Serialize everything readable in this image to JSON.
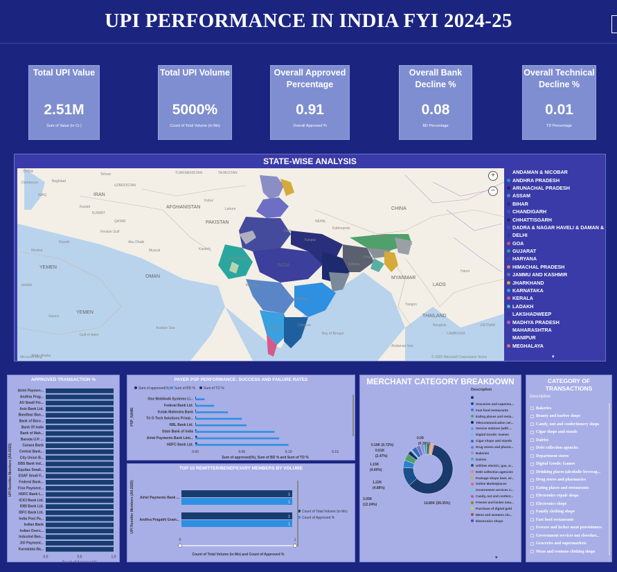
{
  "header": {
    "title": "UPI PERFORMANCE IN INDIA FYI 2024-25"
  },
  "kpis": [
    {
      "title": "Total UPI Value",
      "value": "2.51M",
      "subtitle": "Sum of Value (in Cr.)"
    },
    {
      "title": "Total UPI Volume",
      "value": "5000%",
      "subtitle": "Count of Total Volume (in Mn)"
    },
    {
      "title": "Overall Approved Percentage",
      "value": "0.91",
      "subtitle": "Overall Approved %"
    },
    {
      "title": "Overall Bank Decline %",
      "value": "0.08",
      "subtitle": "BD Percentage"
    },
    {
      "title": "Overall Technical Decline %",
      "value": "0.01",
      "subtitle": "TD Percentage"
    }
  ],
  "map": {
    "title": "STATE-WISE ANALYSIS",
    "labels": {
      "countries": [
        "AFGHANISTAN",
        "PAKISTAN",
        "IRAN",
        "OMAN",
        "SAUDI ARABIA",
        "YEMEN",
        "SYRIA",
        "IRAQ",
        "KUWAIT",
        "QATAR",
        "TURKMENISTAN",
        "UZBEKISTAN",
        "TAJIKISTAN",
        "NEPAL",
        "CHINA",
        "MYANMAR",
        "THAILAND",
        "LAOS",
        "VIETNAM",
        "CAMBODIA",
        "BHUTAN",
        "INDIA"
      ],
      "cities": [
        "Damascus",
        "Baghdad",
        "Tehran",
        "Kabul",
        "Riyadh",
        "Kuwait",
        "Sana'a",
        "Muscat",
        "Mumbai",
        "Hyderabad",
        "Bengaluru",
        "Chennai",
        "Kolkata",
        "Dhaka",
        "Kathmandu",
        "Yangon",
        "Hanoi",
        "Bangkok",
        "Delhi",
        "Kanpur",
        "Ahmedabad",
        "Lahore",
        "Karachi",
        "Jeddah",
        "Abu Dhabi",
        "Addis Ababa",
        "Medina"
      ],
      "seas": [
        "Arabian Sea",
        "Bay of Bengal",
        "Gulf of Aden",
        "Andaman Sea",
        "Persian Gulf"
      ]
    },
    "attribution": "© 2025 Microsoft Corporation  Terms",
    "bing": "Microsoft Bing",
    "zoom_in": "+",
    "zoom_out": "−",
    "legend_more": "▾",
    "legend": [
      {
        "name": "ANDAMAN & NICOBAR",
        "color": "#3a3ba8"
      },
      {
        "name": "ANDHRA PRADESH",
        "color": "#2f8fe0"
      },
      {
        "name": "ARUNACHAL PRADESH",
        "color": "#1d2a6e"
      },
      {
        "name": "ASSAM",
        "color": "#5a86c8"
      },
      {
        "name": "BIHAR",
        "color": "#2a2f7c"
      },
      {
        "name": "CHANDIGARH",
        "color": "#3b56b8"
      },
      {
        "name": "CHHATTISGARH",
        "color": "#1f2b63"
      },
      {
        "name": "DADRA & NAGAR HAVELI & DAMAN & DIU",
        "color": "#4a4cc0"
      },
      {
        "name": "DELHI",
        "color": "#2b3b98"
      },
      {
        "name": "GOA",
        "color": "#c45a7a"
      },
      {
        "name": "GUJARAT",
        "color": "#2aa6a0"
      },
      {
        "name": "HARYANA",
        "color": "#444a9c"
      },
      {
        "name": "HIMACHAL PRADESH",
        "color": "#d58a6a"
      },
      {
        "name": "JAMMU AND KASHMIR",
        "color": "#6c6fc4"
      },
      {
        "name": "JHARKHAND",
        "color": "#d4aa3a"
      },
      {
        "name": "KARNATAKA",
        "color": "#3aa0e0"
      },
      {
        "name": "KERALA",
        "color": "#d45a8a"
      },
      {
        "name": "LADAKH",
        "color": "#4fbac0"
      },
      {
        "name": "LAKSHADWEEP",
        "color": "#333a8c"
      },
      {
        "name": "MADHYA PRADESH",
        "color": "#c85ab0"
      },
      {
        "name": "MAHARASHTRA",
        "color": "#3c3f9c"
      },
      {
        "name": "MANIPUR",
        "color": "#3a3ba8"
      },
      {
        "name": "MEGHALAYA",
        "color": "#e06a80"
      }
    ]
  },
  "approved": {
    "title": "APPROVED TRANSACTION %",
    "ylabel": "UPI Remitter Members (All-2025)",
    "xlabel": "Count of Approved %",
    "xticks": [
      "0.0",
      "0.5",
      "1.0"
    ],
    "banks": [
      "Airtel Paymen...",
      "Andhra Prag...",
      "AU Small Fin...",
      "Axis Bank Ltd.",
      "Bandhan Ban...",
      "Bank of Baro...",
      "Bank Of India",
      "Bank of Mah...",
      "Baroda U.P. ...",
      "Canara Bank",
      "Central Bank...",
      "City Union B...",
      "DBS Bank Ind...",
      "Equitas Small...",
      "ESAF Small F...",
      "Federal Bank...",
      "Fino Payment...",
      "HDFC Bank L...",
      "ICICI Bank Ltd.",
      "IDBI Bank Ltd.",
      "IDFC Bank Ltd.",
      "India Post Pa...",
      "Indian Bank",
      "Indian Overs...",
      "IndusInd Ban...",
      "JIO Payment...",
      "Karnataka Ba..."
    ],
    "values": [
      1,
      1,
      1,
      1,
      1,
      1,
      1,
      1,
      1,
      1,
      1,
      1,
      1,
      1,
      1,
      1,
      1,
      1,
      1,
      1,
      1,
      1,
      1,
      1,
      1,
      1,
      1
    ]
  },
  "psp": {
    "title": "PAYER PSP PERFORMANCE: SUCCESS AND FAILURE RATES",
    "legend": [
      "Sum of approved(%)",
      "Sum of BD %",
      "Sum of TD %"
    ],
    "ylabel": "PSP_NAME",
    "xlabel": "Sum of approved(%), Sum of BD % and Sum of TD %",
    "xticks": [
      "0.00",
      "0.05",
      "0.10",
      "0.15"
    ],
    "names": [
      "One Mobikwik Systems Li...",
      "Federal Bank Ltd.",
      "Kotak Mahindra Bank",
      "Tri O Tech Solutions Privat...",
      "RBL Bank Ltd.",
      "State Bank of India",
      "Airtel Payments Bank Limi...",
      "HDFC Bank Ltd."
    ],
    "bd": [
      0.01,
      0.02,
      0.035,
      0.05,
      0.055,
      0.085,
      0.09,
      0.1
    ],
    "td": [
      0.0,
      0.0,
      0.0,
      0.0,
      0.0,
      0.001,
      0.002,
      0.002
    ]
  },
  "top10": {
    "title": "TOP 10 REMITTER/BENEFICIARY MEMBERS BY VOLUME",
    "ylabel": "UPI Remitter Members (All-2025)",
    "xlabel": "Count of Total Volume (in Mn) and Count of Approved %",
    "legend": [
      "Count of Total Volume (in Mn)",
      "Count of Approved %"
    ],
    "members": [
      "Airtel Payments Bank ...",
      "Andhra Pragathi Gram..."
    ],
    "volume": [
      1,
      1
    ],
    "approved": [
      1,
      1
    ],
    "slider": [
      "0",
      "1"
    ]
  },
  "merchant": {
    "title": "MERCHANT CATEGORY BREAKDOWN",
    "legend_header": "Description",
    "legend": [
      {
        "name": "",
        "color": "#1a3a6c"
      },
      {
        "name": "Groceries and supermа...",
        "color": "#1a4f8a"
      },
      {
        "name": "Fast food restaurants",
        "color": "#2f7fd0"
      },
      {
        "name": "Eating places and resta...",
        "color": "#4fa06a"
      },
      {
        "name": "Telecommunication ser...",
        "color": "#1d2a6e"
      },
      {
        "name": "Service stations (with ...",
        "color": "#58a0e0"
      },
      {
        "name": "Digital Goods: Games",
        "color": "#7fb6e8"
      },
      {
        "name": "Cigar shops and stands",
        "color": "#3a6ab0"
      },
      {
        "name": "Drug stores and pharm...",
        "color": "#6a7ad0"
      },
      {
        "name": "Bakeries",
        "color": "#9a8ad8"
      },
      {
        "name": "Dairies",
        "color": "#38b0a8"
      },
      {
        "name": "Utilities electric, gas, w...",
        "color": "#2a5080"
      },
      {
        "name": "Debt collection agencies",
        "color": "#e08a5a"
      },
      {
        "name": "Package shops beer, wi...",
        "color": "#c8b04a"
      },
      {
        "name": "Online Marketplaces",
        "color": "#e0607a"
      },
      {
        "name": "Government services n...",
        "color": "#6ad0c8"
      },
      {
        "name": "Candy, nut and confect...",
        "color": "#b05a9a"
      },
      {
        "name": "Freezer and locker mea...",
        "color": "#7a8a3a"
      },
      {
        "name": "Purchase of digital gold",
        "color": "#d0d04a"
      },
      {
        "name": "Mens and womens clo...",
        "color": "#8a5a3a"
      },
      {
        "name": "Electronics shops",
        "color": "#4a4ab0"
      }
    ],
    "data_labels": [
      "0.09",
      "0.18K (0.72%)",
      "0.61K",
      "(2.47%)",
      "1.15K",
      "(4.60%)",
      "1.22K",
      "(4.88%)",
      "3.05K",
      "(12.24%)",
      "14.80K (59.35%)",
      "(0.36%)"
    ],
    "donut": [
      59.35,
      12.24,
      4.88,
      4.6,
      2.47,
      0.72,
      0.36,
      3.2,
      2.8,
      2.4,
      2.0,
      1.6,
      1.3,
      1.0,
      0.8
    ],
    "more": "▾"
  },
  "category": {
    "title": "CATEGORY OF TRANSACTIONS",
    "header": "Description",
    "items": [
      "Bakeries",
      "Beauty and barber shops",
      "Candy, nut and confectionery shops",
      "Cigar shops and stands",
      "Dairies",
      "Debt collection agencies",
      "Department stores",
      "Digital Goods: Games",
      "Drinking places (alcoholic beverag...",
      "Drug stores and pharmacies",
      "Eating places and restaurants",
      "Electronics repair shops",
      "Electronics shops",
      "Family clothing shops",
      "Fast food restaurants",
      "Freezer and locker meat provisioners",
      "Government services not elsewher...",
      "Groceries and supermarkets",
      "Mens and womens clothing shops"
    ]
  }
}
